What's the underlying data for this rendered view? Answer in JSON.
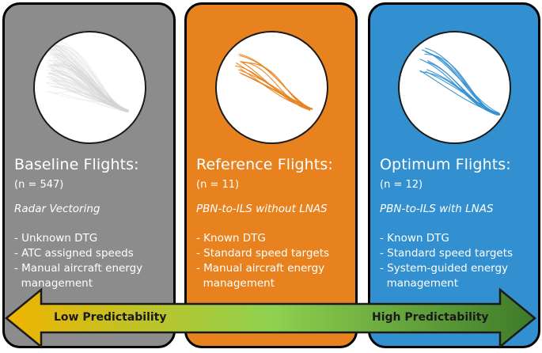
{
  "panels": [
    {
      "title": "Baseline Flights:",
      "count": "(n = 547)",
      "method": "Radar Vectoring",
      "bullets": [
        "- Unknown DTG",
        "- ATC assigned speeds",
        "- Manual aircraft energy",
        "  management"
      ],
      "color": "#8c8c8c",
      "trajectory_color": "#d6d6d6"
    },
    {
      "title": "Reference Flights:",
      "count": "(n = 11)",
      "method": "PBN-to-ILS without LNAS",
      "bullets": [
        "- Known DTG",
        "- Standard speed targets",
        "- Manual aircraft energy",
        "  management"
      ],
      "color": "#e8821f",
      "trajectory_color": "#e8821f"
    },
    {
      "title": "Optimum Flights:",
      "count": "(n = 12)",
      "method": "PBN-to-ILS with LNAS",
      "bullets": [
        "- Known DTG",
        "- Standard speed targets",
        "- System-guided energy",
        "  management"
      ],
      "color": "#3390d0",
      "trajectory_color": "#3390d0"
    }
  ],
  "arrow": {
    "low_label": "Low Predictability",
    "high_label": "High Predictability",
    "gradient": [
      "#f0b400",
      "#8fd14f",
      "#3d7a2a"
    ]
  }
}
